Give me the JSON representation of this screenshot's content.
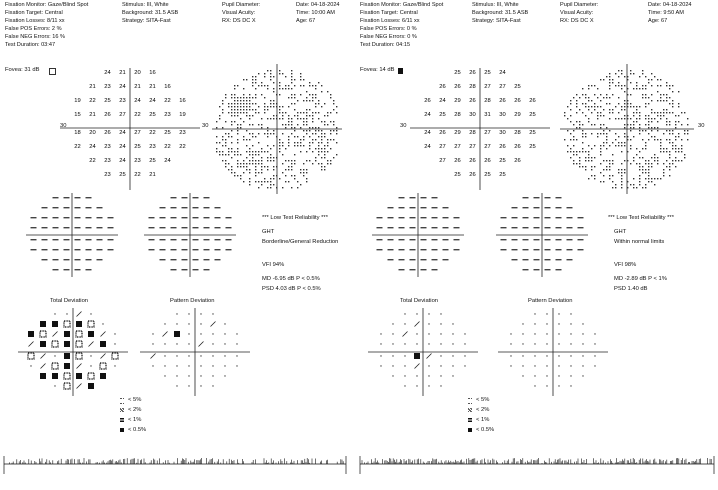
{
  "left": {
    "fixation_monitor": "Fixation Monitor: Gaze/Blind Spot",
    "fixation_target": "Fixation Target: Central",
    "fixation_losses": "Fixation Losses: 8/11 xx",
    "false_pos": "False POS Errors: 2 %",
    "false_neg": "False NEG Errors: 16 %",
    "duration": "Test Duration: 03:47",
    "stimulus": "Stimulus: III, White",
    "background": "Background: 31.5 ASB",
    "strategy": "Strategy: SITA-Fast",
    "pupil": "Pupil Diameter:",
    "acuity": "Visual Acuity:",
    "rx": "RX:        DS       DC  X",
    "date": "Date: 04-18-2024",
    "time": "Time: 10:00 AM",
    "age": "Age: 67",
    "fovea": "Fovea: 31 dB",
    "axis_label": "30",
    "reliability": "*** Low Test Reliability ***",
    "ght_label": "GHT",
    "ght_value": "Borderline/General Reduction",
    "vfi": "VFI      94%",
    "md": "MD      -6.95 dB  P < 0.5%",
    "psd": "PSD     4.03 dB  P < 0.5%",
    "td_title": "Total Deviation",
    "pd_title": "Pattern Deviation",
    "legend": [
      "< 5%",
      "< 2%",
      "< 1%",
      "< 0.5%"
    ],
    "threshold_rows": [
      [
        "24",
        "21",
        "20",
        "16"
      ],
      [
        "21",
        "23",
        "24",
        "21",
        "21",
        "16"
      ],
      [
        "19",
        "22",
        "25",
        "23",
        "24",
        "24",
        "22",
        "16"
      ],
      [
        "15",
        "21",
        "26",
        "27",
        "22",
        "25",
        "23",
        "19"
      ],
      [
        "18",
        "20",
        "26",
        "24",
        "27",
        "22",
        "25",
        "23"
      ],
      [
        "22",
        "24",
        "23",
        "24",
        "25",
        "23",
        "22",
        "22"
      ],
      [
        "22",
        "23",
        "24",
        "23",
        "25",
        "24"
      ],
      [
        "23",
        "25",
        "22",
        "21"
      ]
    ]
  },
  "right": {
    "fixation_monitor": "Fixation Monitor: Gaze/Blind Spot",
    "fixation_target": "Fixation Target: Central",
    "fixation_losses": "Fixation Losses: 6/11 xx",
    "false_pos": "False POS Errors: 0 %",
    "false_neg": "False NEG Errors: 0 %",
    "duration": "Test Duration: 04:15",
    "stimulus": "Stimulus: III, White",
    "background": "Background: 31.5 ASB",
    "strategy": "Strategy: SITA-Fast",
    "pupil": "Pupil Diameter:",
    "acuity": "Visual Acuity:",
    "rx": "RX:        DS       DC  X",
    "date": "Date: 04-18-2024",
    "time": "Time: 9:50 AM",
    "age": "Age: 67",
    "fovea": "Fovea: 14 dB",
    "axis_label": "30",
    "reliability": "*** Low Test Reliability ***",
    "ght_label": "GHT",
    "ght_value": "Within normal limits",
    "vfi": "VFI      98%",
    "md": "MD      -2.89 dB  P < 1%",
    "psd": "PSD     1.40 dB",
    "td_title": "Total Deviation",
    "pd_title": "Pattern Deviation",
    "legend": [
      "< 5%",
      "< 2%",
      "< 1%",
      "< 0.5%"
    ],
    "threshold_rows": [
      [
        "25",
        "26",
        "25",
        "24"
      ],
      [
        "26",
        "26",
        "28",
        "27",
        "27",
        "25"
      ],
      [
        "26",
        "24",
        "29",
        "26",
        "28",
        "26",
        "26",
        "26"
      ],
      [
        "24",
        "25",
        "28",
        "30",
        "31",
        "30",
        "29",
        "25"
      ],
      [
        "24",
        "26",
        "29",
        "28",
        "27",
        "30",
        "28",
        "25"
      ],
      [
        "24",
        "27",
        "27",
        "27",
        "27",
        "26",
        "26",
        "25"
      ],
      [
        "27",
        "26",
        "26",
        "26",
        "25",
        "26"
      ],
      [
        "25",
        "26",
        "25",
        "25"
      ]
    ]
  }
}
